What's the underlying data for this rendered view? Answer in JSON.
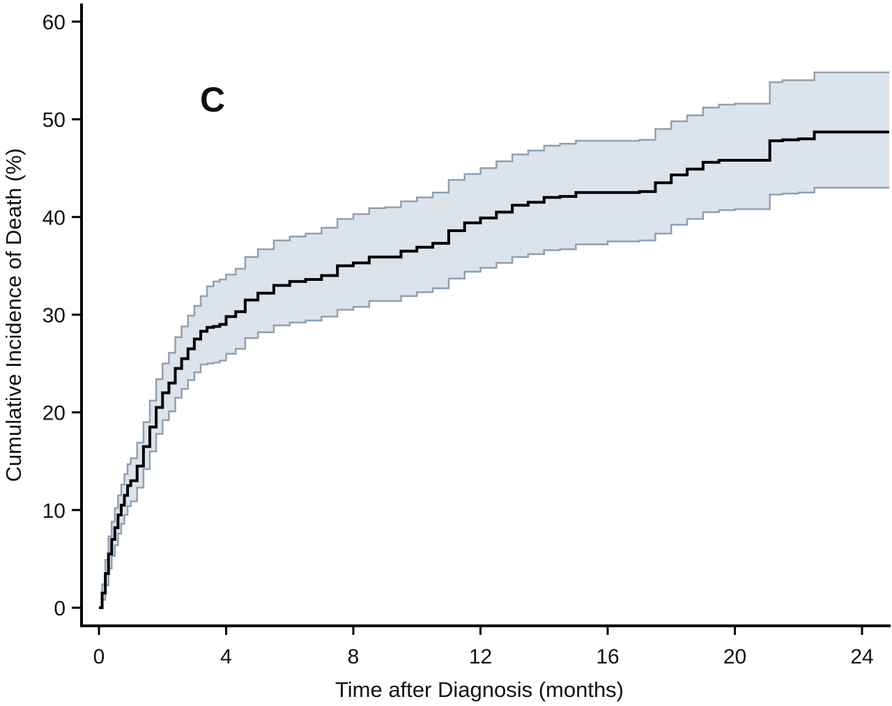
{
  "chart_data": {
    "type": "line",
    "title": "",
    "panel_label": "C",
    "xlabel": "Time after Diagnosis (months)",
    "ylabel": "Cumulative Incidence of Death (%)",
    "xlim": [
      0,
      24
    ],
    "ylim": [
      0,
      60
    ],
    "x_ticks": [
      "0",
      "4",
      "8",
      "12",
      "16",
      "20",
      "24"
    ],
    "y_ticks": [
      "0",
      "10",
      "20",
      "30",
      "40",
      "50",
      "60"
    ],
    "grid": false,
    "legend": "none",
    "colors": {
      "estimate": "#000000",
      "ci_fill": "#dde3ea",
      "ci_line": "#8fa1b3"
    },
    "series": [
      {
        "role": "estimate",
        "x": [
          0,
          0.1,
          0.2,
          0.3,
          0.4,
          0.5,
          0.6,
          0.7,
          0.8,
          0.9,
          1.0,
          1.2,
          1.4,
          1.6,
          1.8,
          2.0,
          2.2,
          2.4,
          2.6,
          2.8,
          3.0,
          3.2,
          3.4,
          3.6,
          3.8,
          4.0,
          4.3,
          4.6,
          5.0,
          5.5,
          6.0,
          6.5,
          7.0,
          7.5,
          8.0,
          8.5,
          9.0,
          9.5,
          10.0,
          10.5,
          11.0,
          11.5,
          12.0,
          12.5,
          13.0,
          13.5,
          14.0,
          14.5,
          15.0,
          16.0,
          17.0,
          17.5,
          18.0,
          18.5,
          19.0,
          19.5,
          20.0,
          20.5,
          21.0,
          21.1,
          21.5,
          22.0,
          22.5,
          23.0,
          24.0,
          25.0
        ],
        "y": [
          0,
          1.5,
          3.5,
          5.5,
          7.0,
          8.2,
          9.5,
          10.5,
          11.5,
          12.5,
          13.0,
          14.5,
          16.5,
          18.5,
          20.5,
          22.0,
          23.0,
          24.5,
          25.5,
          26.5,
          27.5,
          28.3,
          28.7,
          28.8,
          29.0,
          29.8,
          30.3,
          31.5,
          32.2,
          33.0,
          33.4,
          33.6,
          34.0,
          35.0,
          35.3,
          35.9,
          35.9,
          36.5,
          36.9,
          37.3,
          38.6,
          39.4,
          39.9,
          40.5,
          41.2,
          41.5,
          42.0,
          42.1,
          42.5,
          42.5,
          42.6,
          43.5,
          44.3,
          44.9,
          45.6,
          45.8,
          45.8,
          45.8,
          45.8,
          47.8,
          47.9,
          48.0,
          48.7,
          48.7,
          48.7,
          48.7
        ]
      },
      {
        "role": "ci_lower",
        "x": [
          0,
          0.1,
          0.2,
          0.3,
          0.4,
          0.5,
          0.6,
          0.7,
          0.8,
          0.9,
          1.0,
          1.2,
          1.4,
          1.6,
          1.8,
          2.0,
          2.2,
          2.4,
          2.6,
          2.8,
          3.0,
          3.2,
          3.4,
          3.6,
          3.8,
          4.0,
          4.3,
          4.6,
          5.0,
          5.5,
          6.0,
          6.5,
          7.0,
          7.5,
          8.0,
          8.5,
          9.0,
          9.5,
          10.0,
          10.5,
          11.0,
          11.5,
          12.0,
          12.5,
          13.0,
          13.5,
          14.0,
          14.5,
          15.0,
          16.0,
          17.0,
          17.5,
          18.0,
          18.5,
          19.0,
          19.5,
          20.0,
          20.5,
          21.0,
          21.1,
          21.5,
          22.0,
          22.5,
          23.0,
          24.0,
          25.0
        ],
        "y": [
          0,
          0.8,
          2.3,
          4.0,
          5.3,
          6.4,
          7.6,
          8.6,
          9.5,
          10.4,
          10.9,
          12.3,
          14.2,
          16.0,
          17.8,
          19.2,
          20.1,
          21.5,
          22.4,
          23.3,
          24.1,
          24.9,
          25.0,
          25.1,
          25.3,
          26.0,
          26.5,
          27.6,
          28.2,
          28.9,
          29.2,
          29.4,
          29.8,
          30.5,
          30.8,
          31.4,
          31.4,
          31.9,
          32.3,
          32.7,
          33.7,
          34.4,
          34.8,
          35.3,
          35.9,
          36.2,
          36.6,
          36.7,
          37.2,
          37.5,
          37.6,
          38.3,
          39.2,
          39.8,
          40.5,
          40.7,
          40.8,
          40.8,
          40.8,
          42.3,
          42.4,
          42.5,
          43.0,
          43.0,
          43.0,
          43.0
        ]
      },
      {
        "role": "ci_upper",
        "x": [
          0,
          0.1,
          0.2,
          0.3,
          0.4,
          0.5,
          0.6,
          0.7,
          0.8,
          0.9,
          1.0,
          1.2,
          1.4,
          1.6,
          1.8,
          2.0,
          2.2,
          2.4,
          2.6,
          2.8,
          3.0,
          3.2,
          3.4,
          3.6,
          3.8,
          4.0,
          4.3,
          4.6,
          5.0,
          5.5,
          6.0,
          6.5,
          7.0,
          7.5,
          8.0,
          8.5,
          9.0,
          9.5,
          10.0,
          10.5,
          11.0,
          11.5,
          12.0,
          12.5,
          13.0,
          13.5,
          14.0,
          14.5,
          15.0,
          16.0,
          17.0,
          17.5,
          18.0,
          18.5,
          19.0,
          19.5,
          20.0,
          20.5,
          21.0,
          21.1,
          21.5,
          22.0,
          22.5,
          23.0,
          24.0,
          25.0
        ],
        "y": [
          0,
          2.4,
          4.9,
          7.3,
          8.8,
          10.2,
          11.5,
          12.6,
          13.7,
          14.7,
          15.3,
          16.9,
          19.0,
          21.2,
          23.4,
          25.0,
          26.1,
          27.7,
          28.8,
          29.9,
          30.9,
          31.9,
          32.9,
          33.4,
          33.6,
          34.1,
          34.7,
          35.9,
          36.7,
          37.6,
          38.0,
          38.3,
          38.9,
          39.8,
          40.3,
          40.9,
          41.0,
          41.6,
          42.0,
          42.5,
          43.8,
          44.4,
          45.0,
          45.7,
          46.4,
          46.8,
          47.3,
          47.5,
          47.8,
          47.8,
          47.9,
          49.0,
          49.8,
          50.4,
          51.2,
          51.5,
          51.6,
          51.6,
          51.6,
          53.8,
          54.0,
          54.0,
          54.8,
          54.8,
          54.8,
          54.8
        ]
      }
    ]
  }
}
